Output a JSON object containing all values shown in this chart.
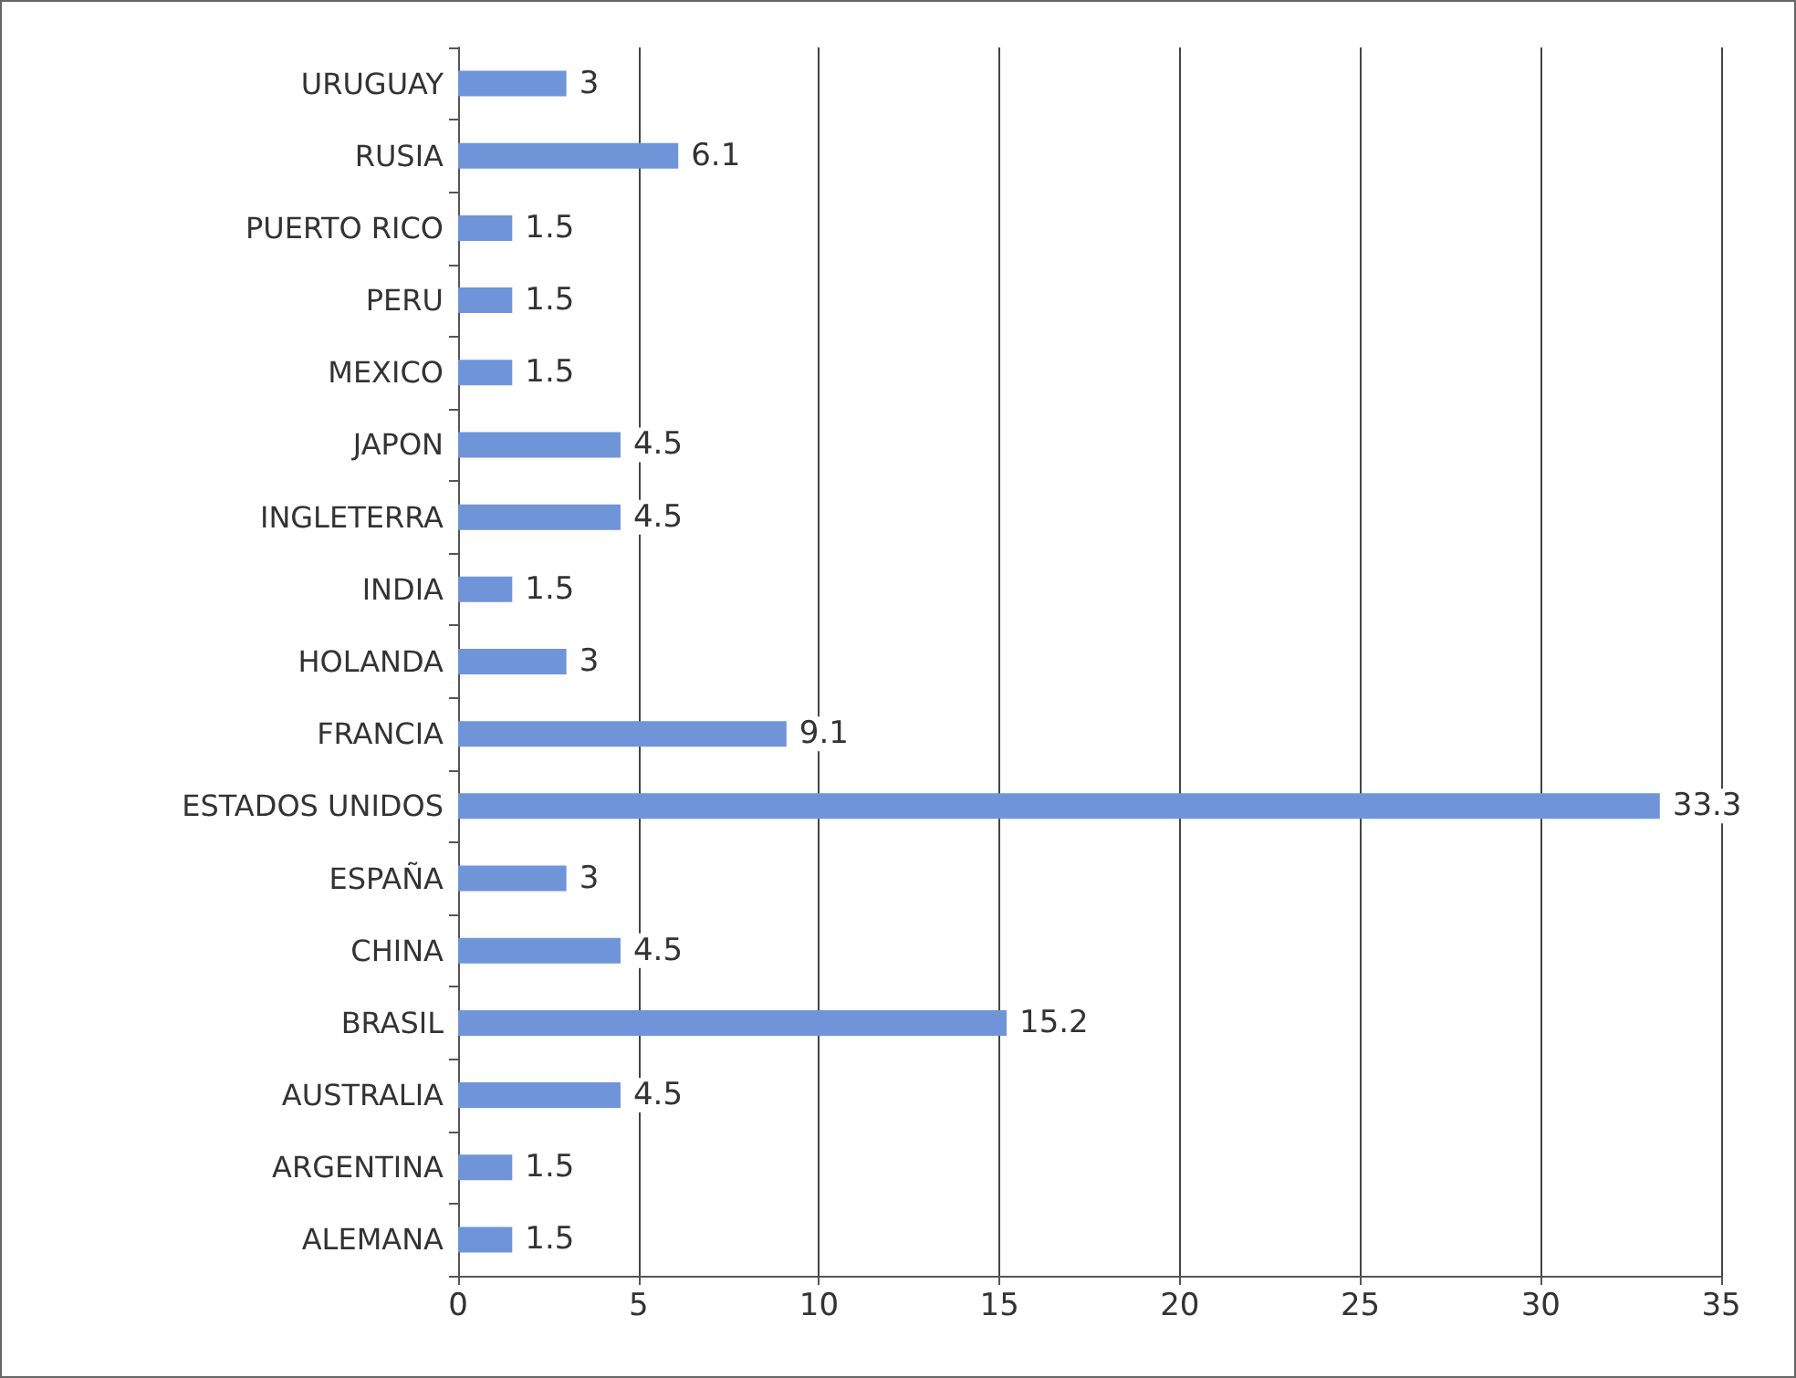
{
  "chart_data": {
    "type": "bar",
    "orientation": "horizontal",
    "categories": [
      "URUGUAY",
      "RUSIA",
      "PUERTO RICO",
      "PERU",
      "MEXICO",
      "JAPON",
      "INGLETERRA",
      "INDIA",
      "HOLANDA",
      "FRANCIA",
      "ESTADOS UNIDOS",
      "ESPAÑA",
      "CHINA",
      "BRASIL",
      "AUSTRALIA",
      "ARGENTINA",
      "ALEMANA"
    ],
    "values": [
      3,
      6.1,
      1.5,
      1.5,
      1.5,
      4.5,
      4.5,
      1.5,
      3,
      9.1,
      33.3,
      3,
      4.5,
      15.2,
      4.5,
      1.5,
      1.5
    ],
    "color": "#6f94d8",
    "xlim": [
      0,
      35
    ],
    "xticks": [
      0,
      5,
      10,
      15,
      20,
      25,
      30,
      35
    ],
    "grid": "x",
    "data_labels": true
  }
}
